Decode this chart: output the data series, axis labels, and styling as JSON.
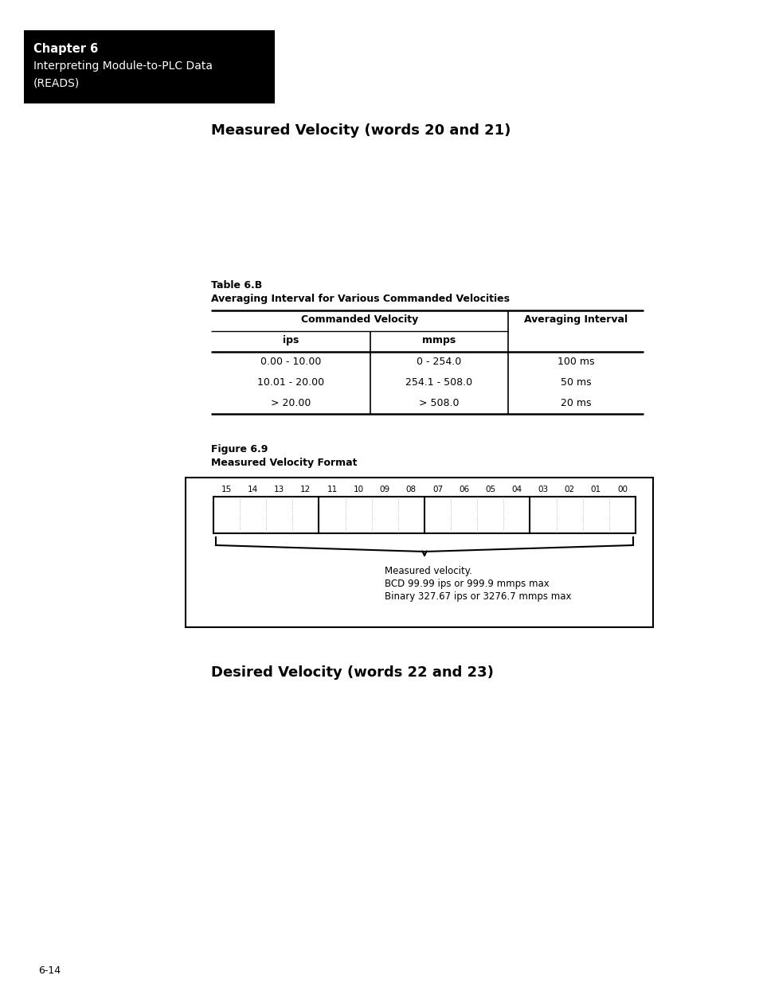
{
  "page_bg": "#ffffff",
  "header_bg": "#000000",
  "header_text_color": "#ffffff",
  "header_bold": "Chapter 6",
  "header_line2": "Interpreting Module-to-PLC Data",
  "header_line3": "(READS)",
  "section1_title": "Measured Velocity (words 20 and 21)",
  "table_title_line1": "Table 6.B",
  "table_title_line2": "Averaging Interval for Various Commanded Velocities",
  "col_header1": "Commanded Velocity",
  "col_header2": "Averaging Interval",
  "sub_header1": "ips",
  "sub_header2": "mmps",
  "rows": [
    [
      "0.00 - 10.00",
      "0 - 254.0",
      "100 ms"
    ],
    [
      "10.01 - 20.00",
      "254.1 - 508.0",
      "50 ms"
    ],
    [
      "> 20.00",
      "> 508.0",
      "20 ms"
    ]
  ],
  "figure_title_line1": "Figure 6.9",
  "figure_title_line2": "Measured Velocity Format",
  "bit_labels": [
    "15",
    "14",
    "13",
    "12",
    "11",
    "10",
    "09",
    "08",
    "07",
    "06",
    "05",
    "04",
    "03",
    "02",
    "01",
    "00"
  ],
  "annotation_line1": "Measured velocity.",
  "annotation_line2": "BCD 99.99 ips or 999.9 mmps max",
  "annotation_line3": "Binary 327.67 ips or 3276.7 mmps max",
  "section2_title": "Desired Velocity (words 22 and 23)",
  "footer_text": "6-14"
}
